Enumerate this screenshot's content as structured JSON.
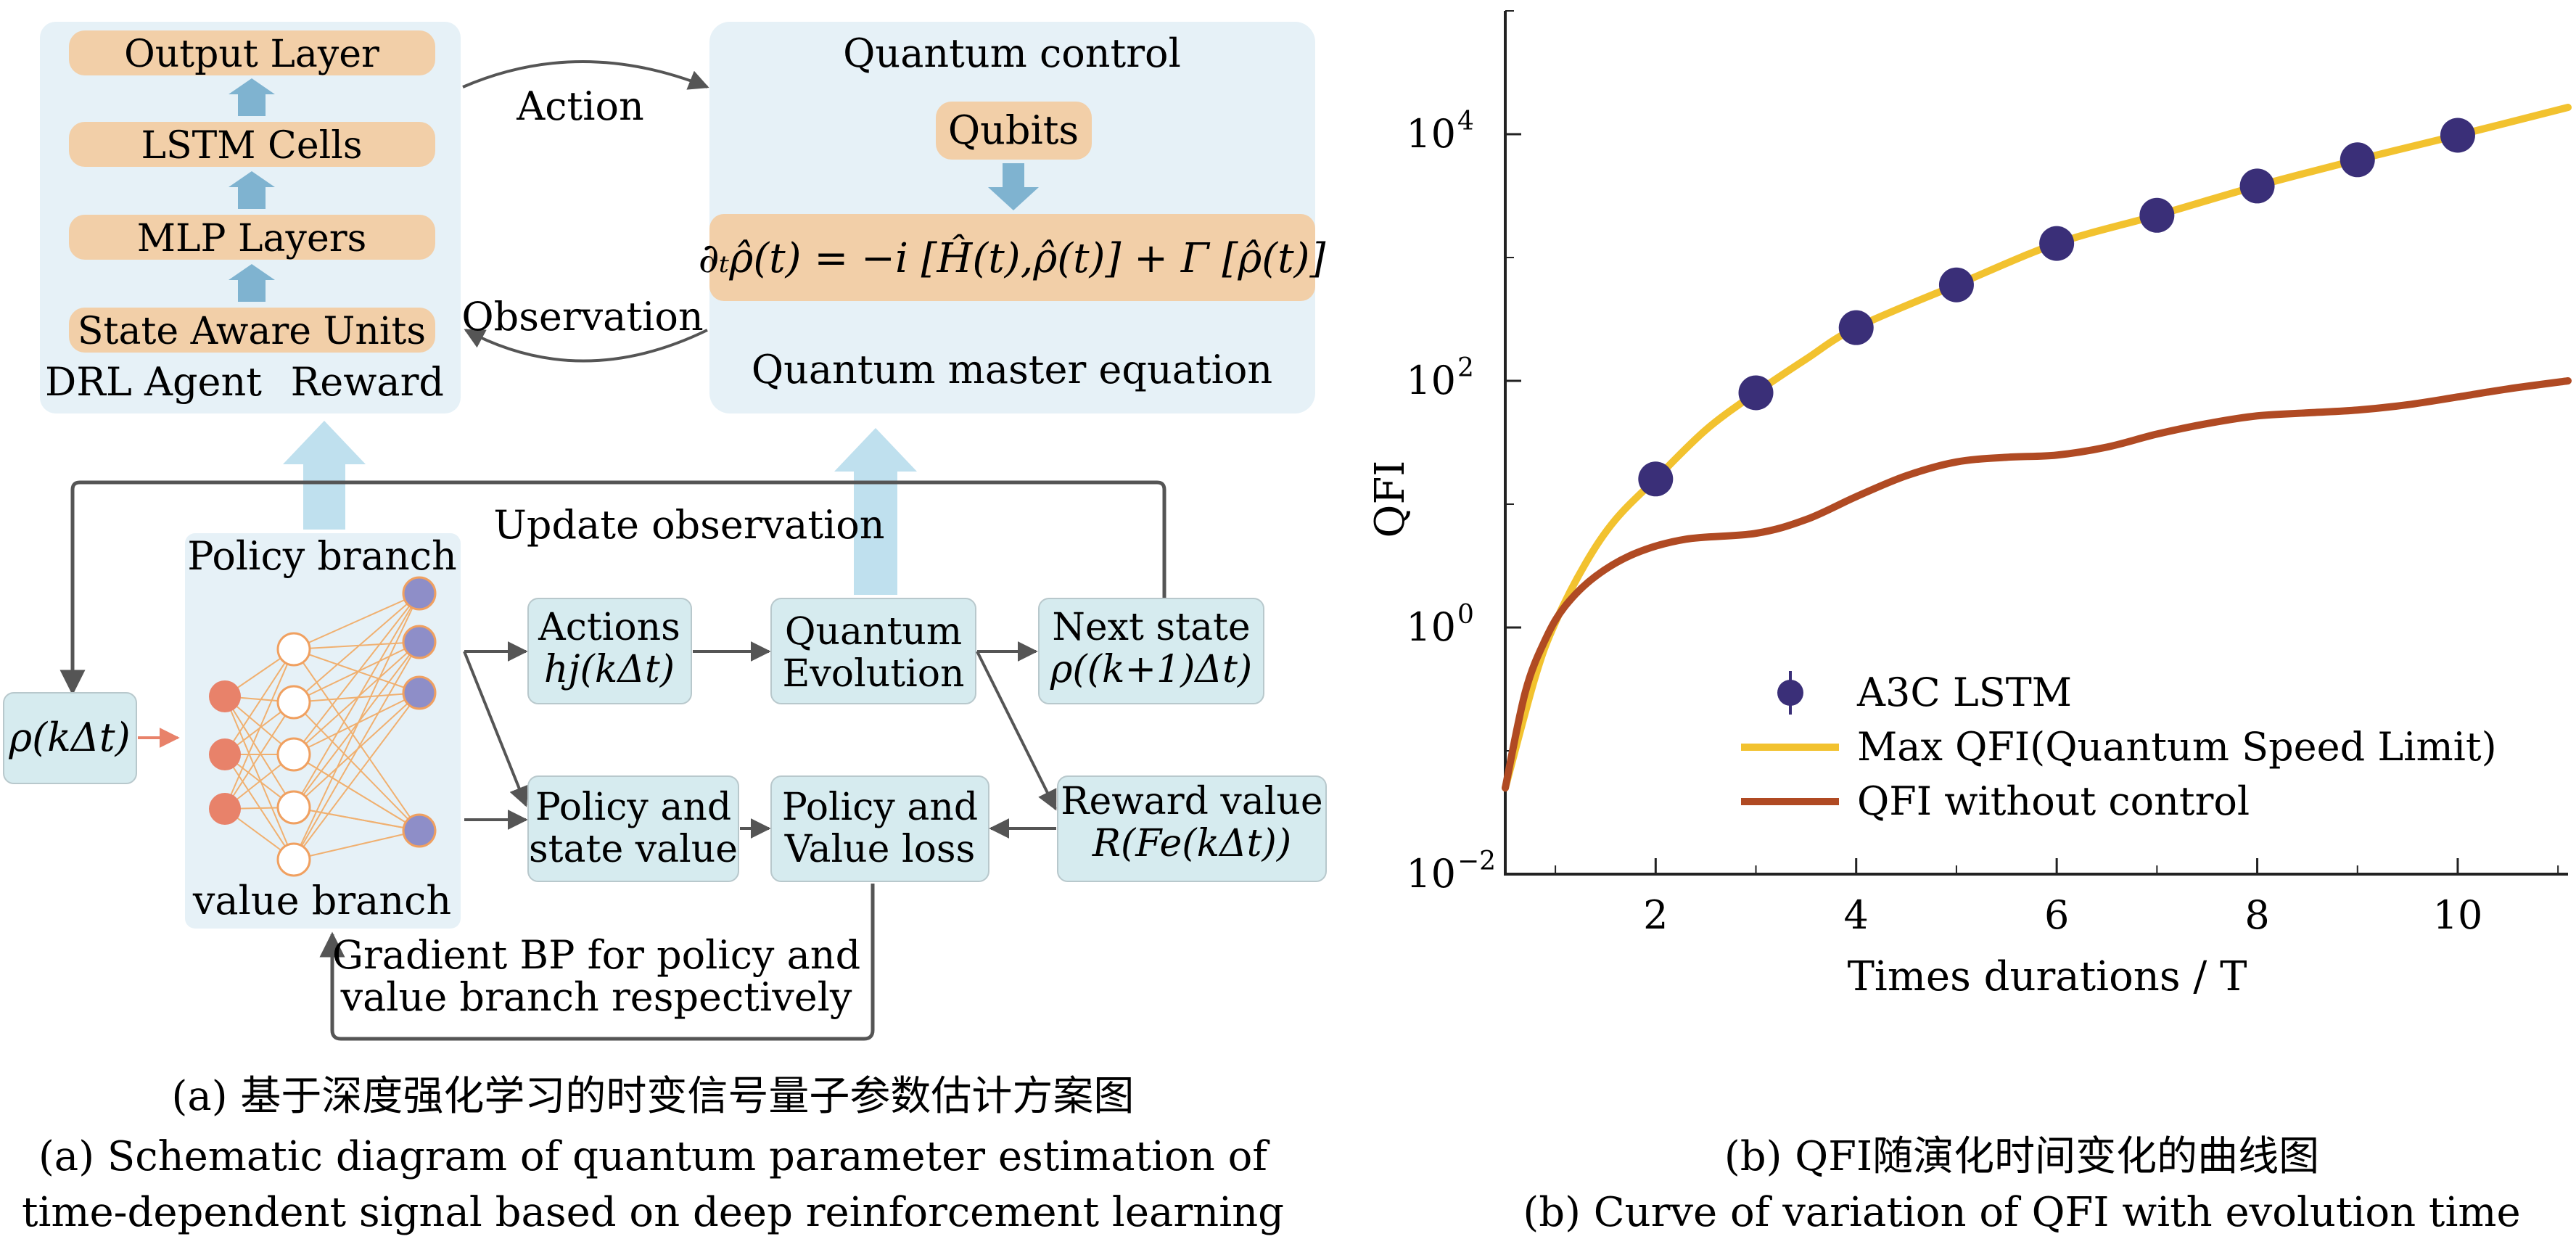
{
  "colors": {
    "panel_bg": "#e6f1f7",
    "orange_box": "#f2cfa8",
    "orange_node": "#e8826a",
    "purple_node": "#8e8ec8",
    "teal_box": "#d6ebef",
    "arrow_blue": "#7fb3d0",
    "gray_line": "#555555",
    "max_qfi_curve": "#f2c22f",
    "no_control_curve": "#b04a23",
    "marker": "#3a2f78"
  },
  "agent": {
    "output_layer": "Output Layer",
    "lstm_cells": "LSTM Cells",
    "mlp_layers": "MLP Layers",
    "state_aware_units": "State Aware Units",
    "drl_agent": "DRL Agent",
    "reward": "Reward"
  },
  "loop": {
    "action": "Action",
    "observation": "Observation"
  },
  "quantum": {
    "title": "Quantum control",
    "qubits": "Qubits",
    "equation": "∂ₜρ̂(t) = −i [Ĥ(t),ρ̂(t)] + Γ [ρ̂(t)]",
    "subtitle": "Quantum master equation"
  },
  "flow": {
    "update_observation": "Update observation",
    "rho": "ρ(kΔt)",
    "policy_branch": "Policy branch",
    "value_branch": "value branch",
    "actions_1": "Actions",
    "actions_2": "hj(kΔt)",
    "quantum_evolution_1": "Quantum",
    "quantum_evolution_2": "Evolution",
    "next_state_1": "Next state",
    "next_state_2": "ρ((k+1)Δt)",
    "policy_state_1": "Policy and",
    "policy_state_2": "state value",
    "policy_value_loss_1": "Policy and",
    "policy_value_loss_2": "Value loss",
    "reward_value_1": "Reward value",
    "reward_value_2": "R(Fe(kΔt))",
    "gradient_1": "Gradient BP for policy and",
    "gradient_2": "value branch respectively"
  },
  "captions": {
    "a_cn": "(a) 基于深度强化学习的时变信号量子参数估计方案图",
    "a_en_1": "(a) Schematic diagram of quantum parameter estimation of",
    "a_en_2": "time-dependent signal based on deep reinforcement learning",
    "b_cn": "(b)  QFI随演化时间变化的曲线图",
    "b_en": "(b) Curve of variation of QFI with evolution time"
  },
  "chart_data": {
    "type": "scatter",
    "xlabel": "Times durations / T",
    "ylabel": "QFI",
    "xlim": [
      0.5,
      11.1
    ],
    "ylim": [
      -2,
      5
    ],
    "y_scale": "log",
    "x_ticks": [
      2,
      4,
      6,
      8,
      10
    ],
    "y_ticks": [
      {
        "exp": -2,
        "label": "10",
        "sup": "−2"
      },
      {
        "exp": 0,
        "label": "10",
        "sup": "0"
      },
      {
        "exp": 2,
        "label": "10",
        "sup": "2"
      },
      {
        "exp": 4,
        "label": "10",
        "sup": "4"
      }
    ],
    "legend_position": "center-right",
    "series": [
      {
        "name": "A3C LSTM",
        "kind": "markers",
        "x": [
          2,
          3,
          4,
          5,
          6,
          7,
          8,
          9,
          10
        ],
        "y": [
          16,
          80,
          270,
          600,
          1300,
          2200,
          3800,
          6200,
          9800
        ]
      },
      {
        "name": "Max QFI(Quantum Speed Limit)",
        "kind": "line",
        "x": [
          0.5,
          0.8,
          1.0,
          1.3,
          1.6,
          2.0,
          2.5,
          3.0,
          3.5,
          4.0,
          5.0,
          6.0,
          7.0,
          8.0,
          9.0,
          10.0,
          11.1
        ],
        "y": [
          0.05,
          0.4,
          1.1,
          3.3,
          7.5,
          16,
          40,
          80,
          150,
          270,
          600,
          1300,
          2200,
          3800,
          6200,
          9800,
          16500
        ]
      },
      {
        "name": "QFI without control",
        "kind": "line",
        "x": [
          0.5,
          0.7,
          0.9,
          1.1,
          1.4,
          1.8,
          2.3,
          3.0,
          3.5,
          4.0,
          4.5,
          5.0,
          5.5,
          6.0,
          6.5,
          7.0,
          7.5,
          8.0,
          8.5,
          9.0,
          9.5,
          10.0,
          10.5,
          11.1
        ],
        "y": [
          0.05,
          0.3,
          0.8,
          1.5,
          2.6,
          4.0,
          5.2,
          5.8,
          7.5,
          11.5,
          17,
          22,
          24,
          25,
          29,
          37,
          45,
          52,
          55,
          58,
          64,
          74,
          86,
          100
        ]
      }
    ]
  }
}
